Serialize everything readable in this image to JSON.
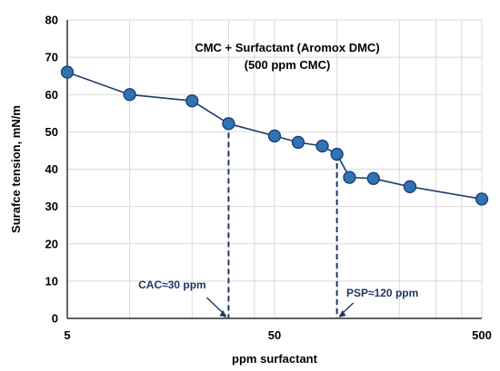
{
  "chart_data": {
    "type": "scatter",
    "title_lines": [
      "CMC + Surfactant (Aromox DMC)",
      "(500 ppm CMC)"
    ],
    "xlabel": "ppm surfactant",
    "ylabel": "Surafce tension, mN/m",
    "x_scale": "log",
    "xlim": [
      5,
      500
    ],
    "ylim": [
      0,
      80
    ],
    "x_ticks": [
      5,
      50,
      500
    ],
    "x_tick_labels": [
      "5",
      "50",
      "500"
    ],
    "y_ticks": [
      0,
      10,
      20,
      30,
      40,
      50,
      60,
      70,
      80
    ],
    "y_tick_labels": [
      "0",
      "10",
      "20",
      "30",
      "40",
      "50",
      "60",
      "70",
      "80"
    ],
    "x_minor_gridlines": [
      10,
      20,
      30,
      40,
      100,
      200,
      300,
      400
    ],
    "grid": true,
    "series": [
      {
        "x": [
          5,
          10,
          20,
          30,
          50,
          65,
          85,
          100,
          115,
          150,
          225,
          500
        ],
        "y": [
          66,
          60,
          58.3,
          52.2,
          48.9,
          47.2,
          46.2,
          44,
          37.8,
          37.5,
          35.3,
          32
        ]
      }
    ],
    "annotations": [
      {
        "text": "CAC≈30 ppm",
        "x": 30,
        "y": 52.2
      },
      {
        "text": "PSP≈120 ppm",
        "x": 100,
        "y": 44
      }
    ],
    "colors": {
      "marker_fill": "#2e74b5",
      "marker_edge": "#1f3a6e",
      "line": "#1f3a6e",
      "dashed": "#1f3864",
      "annotation_text": "#1f3864",
      "grid": "#d9d9d9",
      "axis": "#000000"
    }
  }
}
